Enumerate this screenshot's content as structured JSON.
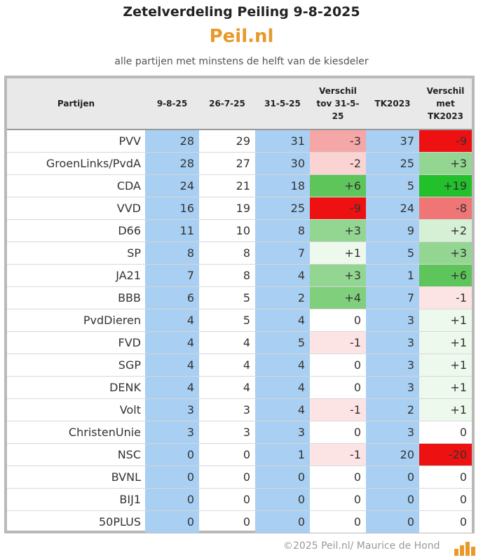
{
  "header": {
    "title": "Zetelverdeling Peiling 9-8-2025",
    "brand": "Peil.nl",
    "subtitle": "alle partijen met minstens de helft van de kiesdeler"
  },
  "table": {
    "columns": [
      "Partijen",
      "9-8-25",
      "26-7-25",
      "31-5-25",
      "Verschil tov 31-5-25",
      "TK2023",
      "Verschil met TK2023"
    ],
    "rows": [
      {
        "party": "PVV",
        "v1": "28",
        "v2": "29",
        "v3": "31",
        "d1": "-3",
        "tk": "37",
        "d2": "-9",
        "c1": "#f5a6a6",
        "c2": "#ee1111"
      },
      {
        "party": "GroenLinks/PvdA",
        "v1": "28",
        "v2": "27",
        "v3": "30",
        "d1": "-2",
        "tk": "25",
        "d2": "+3",
        "c1": "#fbd3d3",
        "c2": "#92d691"
      },
      {
        "party": "CDA",
        "v1": "24",
        "v2": "21",
        "v3": "18",
        "d1": "+6",
        "tk": "5",
        "d2": "+19",
        "c1": "#5dc55a",
        "c2": "#22c02a"
      },
      {
        "party": "VVD",
        "v1": "16",
        "v2": "19",
        "v3": "25",
        "d1": "-9",
        "tk": "24",
        "d2": "-8",
        "c1": "#ee1111",
        "c2": "#f07575"
      },
      {
        "party": "D66",
        "v1": "11",
        "v2": "10",
        "v3": "8",
        "d1": "+3",
        "tk": "9",
        "d2": "+2",
        "c1": "#92d691",
        "c2": "#d6f0d5"
      },
      {
        "party": "SP",
        "v1": "8",
        "v2": "8",
        "v3": "7",
        "d1": "+1",
        "tk": "5",
        "d2": "+3",
        "c1": "#eef9ee",
        "c2": "#92d691"
      },
      {
        "party": "JA21",
        "v1": "7",
        "v2": "8",
        "v3": "4",
        "d1": "+3",
        "tk": "1",
        "d2": "+6",
        "c1": "#92d691",
        "c2": "#5dc55a"
      },
      {
        "party": "BBB",
        "v1": "6",
        "v2": "5",
        "v3": "2",
        "d1": "+4",
        "tk": "7",
        "d2": "-1",
        "c1": "#7fcf7d",
        "c2": "#fde4e4"
      },
      {
        "party": "PvdDieren",
        "v1": "4",
        "v2": "5",
        "v3": "4",
        "d1": "0",
        "tk": "3",
        "d2": "+1",
        "c1": "#ffffff",
        "c2": "#eef9ee"
      },
      {
        "party": "FVD",
        "v1": "4",
        "v2": "4",
        "v3": "5",
        "d1": "-1",
        "tk": "3",
        "d2": "+1",
        "c1": "#fde4e4",
        "c2": "#eef9ee"
      },
      {
        "party": "SGP",
        "v1": "4",
        "v2": "4",
        "v3": "4",
        "d1": "0",
        "tk": "3",
        "d2": "+1",
        "c1": "#ffffff",
        "c2": "#eef9ee"
      },
      {
        "party": "DENK",
        "v1": "4",
        "v2": "4",
        "v3": "4",
        "d1": "0",
        "tk": "3",
        "d2": "+1",
        "c1": "#ffffff",
        "c2": "#eef9ee"
      },
      {
        "party": "Volt",
        "v1": "3",
        "v2": "3",
        "v3": "4",
        "d1": "-1",
        "tk": "2",
        "d2": "+1",
        "c1": "#fde4e4",
        "c2": "#eef9ee"
      },
      {
        "party": "ChristenUnie",
        "v1": "3",
        "v2": "3",
        "v3": "3",
        "d1": "0",
        "tk": "3",
        "d2": "0",
        "c1": "#ffffff",
        "c2": "#ffffff"
      },
      {
        "party": "NSC",
        "v1": "0",
        "v2": "0",
        "v3": "1",
        "d1": "-1",
        "tk": "20",
        "d2": "-20",
        "c1": "#fde4e4",
        "c2": "#ee1111"
      },
      {
        "party": "BVNL",
        "v1": "0",
        "v2": "0",
        "v3": "0",
        "d1": "0",
        "tk": "0",
        "d2": "0",
        "c1": "#ffffff",
        "c2": "#ffffff"
      },
      {
        "party": "BIJ1",
        "v1": "0",
        "v2": "0",
        "v3": "0",
        "d1": "0",
        "tk": "0",
        "d2": "0",
        "c1": "#ffffff",
        "c2": "#ffffff"
      },
      {
        "party": "50PLUS",
        "v1": "0",
        "v2": "0",
        "v3": "0",
        "d1": "0",
        "tk": "0",
        "d2": "0",
        "c1": "#ffffff",
        "c2": "#ffffff"
      }
    ]
  },
  "footer": {
    "credit": "©2025 Peil.nl/ Maurice de Hond",
    "logo_icon": "bar-chart-logo-icon"
  }
}
